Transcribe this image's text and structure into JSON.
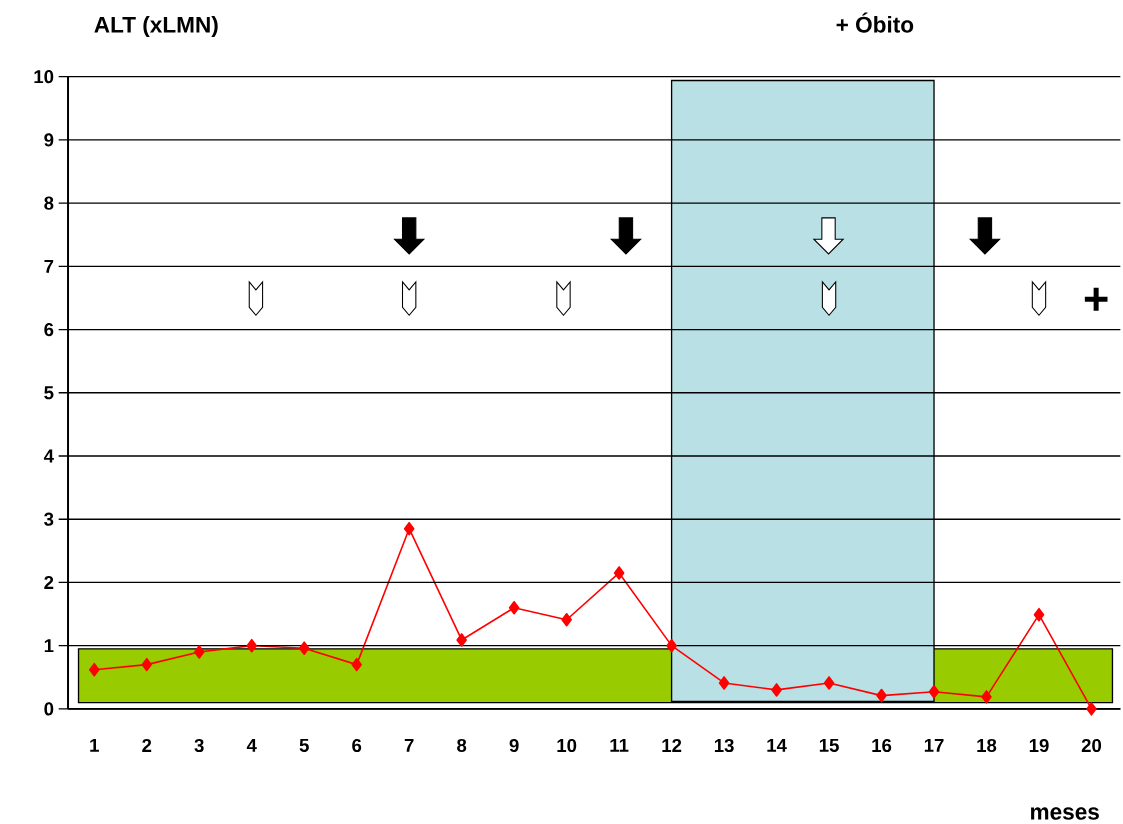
{
  "chart_data": {
    "type": "line",
    "ylabel": "ALT (xLMN)",
    "xlabel": "meses",
    "categories": [
      "1",
      "2",
      "3",
      "4",
      "5",
      "6",
      "7",
      "8",
      "9",
      "10",
      "11",
      "12",
      "13",
      "14",
      "15",
      "16",
      "17",
      "18",
      "19",
      "20"
    ],
    "series": [
      {
        "color": "#ff0000",
        "values": [
          0.62,
          0.7,
          0.9,
          1.0,
          0.96,
          0.7,
          2.85,
          1.09,
          1.6,
          1.41,
          2.15,
          1.0,
          0.41,
          0.3,
          0.41,
          0.21,
          0.27,
          0.19,
          1.49,
          0.0
        ]
      }
    ],
    "ylim": [
      0,
      10
    ],
    "yticks": [
      0,
      1,
      2,
      3,
      4,
      5,
      6,
      7,
      8,
      9,
      10
    ],
    "grid": "y",
    "marker": "diamond",
    "bands": [
      {
        "axis": "y",
        "from": 0.1,
        "to": 0.95,
        "color": "#99cc00"
      },
      {
        "axis": "x",
        "from": "12",
        "to": "17",
        "color": "#b9e0e4"
      }
    ],
    "annotations": [
      "+ Óbito",
      "+"
    ]
  }
}
